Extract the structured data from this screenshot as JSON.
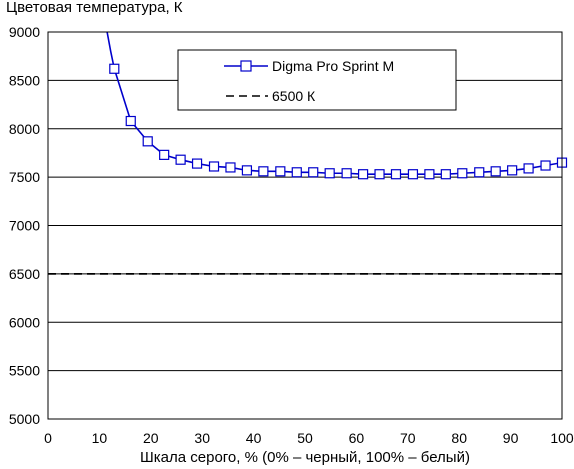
{
  "chart_data": {
    "type": "line",
    "ylabel": "Цветовая температура, К",
    "xlabel": "Шкала серого, % (0% – черный, 100% – белый)",
    "xlim": [
      0,
      100
    ],
    "ylim": [
      5000,
      9000
    ],
    "x_ticks": [
      "0",
      "10",
      "20",
      "30",
      "40",
      "50",
      "60",
      "70",
      "80",
      "90",
      "100"
    ],
    "y_ticks": [
      "5000",
      "5500",
      "6000",
      "6500",
      "7000",
      "7500",
      "8000",
      "8500",
      "9000"
    ],
    "grid": "horizontal",
    "legend_position": "top-center",
    "series": [
      {
        "name": "Digma Pro Sprint M",
        "color": "#0000cc",
        "marker": "square",
        "x": [
          12.9,
          16.1,
          19.4,
          22.6,
          25.8,
          29.0,
          32.3,
          35.5,
          38.7,
          41.9,
          45.2,
          48.4,
          51.6,
          54.8,
          58.1,
          61.3,
          64.5,
          67.7,
          71.0,
          74.2,
          77.4,
          80.6,
          83.9,
          87.1,
          90.3,
          93.5,
          96.8,
          100
        ],
        "y": [
          8620,
          8080,
          7870,
          7730,
          7680,
          7640,
          7610,
          7600,
          7570,
          7560,
          7560,
          7550,
          7550,
          7540,
          7540,
          7530,
          7530,
          7530,
          7530,
          7530,
          7530,
          7540,
          7550,
          7560,
          7570,
          7590,
          7620,
          7650
        ],
        "leading_curve": {
          "x": [
            11.5,
            12.2,
            12.9
          ],
          "y": [
            9000,
            8800,
            8620
          ]
        }
      },
      {
        "name": "6500 К",
        "color": "#000000",
        "style": "dashed",
        "y_const": 6500
      }
    ]
  }
}
